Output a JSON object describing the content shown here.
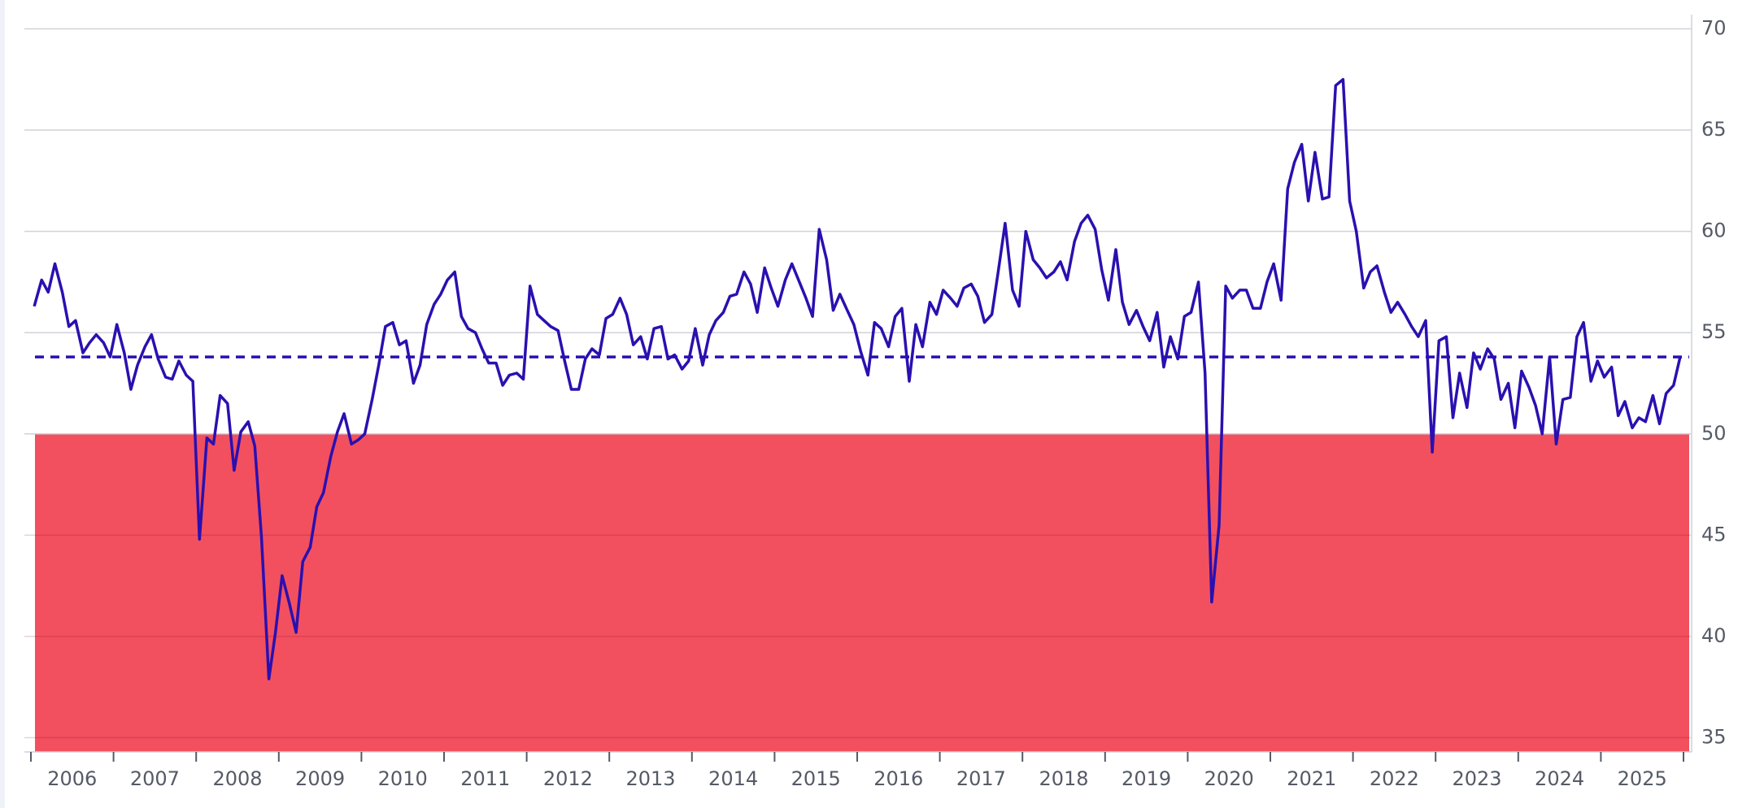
{
  "chart_data": {
    "type": "line",
    "x": [
      2006.04,
      2006.13,
      2006.21,
      2006.29,
      2006.38,
      2006.46,
      2006.54,
      2006.63,
      2006.71,
      2006.79,
      2006.88,
      2006.96,
      2007.04,
      2007.13,
      2007.21,
      2007.29,
      2007.38,
      2007.46,
      2007.54,
      2007.63,
      2007.71,
      2007.79,
      2007.88,
      2007.96,
      2008.04,
      2008.13,
      2008.21,
      2008.29,
      2008.38,
      2008.46,
      2008.54,
      2008.63,
      2008.71,
      2008.79,
      2008.88,
      2008.96,
      2009.04,
      2009.13,
      2009.21,
      2009.29,
      2009.38,
      2009.46,
      2009.54,
      2009.63,
      2009.71,
      2009.79,
      2009.88,
      2009.96,
      2010.04,
      2010.13,
      2010.21,
      2010.29,
      2010.38,
      2010.46,
      2010.54,
      2010.63,
      2010.71,
      2010.79,
      2010.88,
      2010.96,
      2011.04,
      2011.13,
      2011.21,
      2011.29,
      2011.38,
      2011.46,
      2011.54,
      2011.63,
      2011.71,
      2011.79,
      2011.88,
      2011.96,
      2012.04,
      2012.13,
      2012.21,
      2012.29,
      2012.38,
      2012.46,
      2012.54,
      2012.63,
      2012.71,
      2012.79,
      2012.88,
      2012.96,
      2013.04,
      2013.13,
      2013.21,
      2013.29,
      2013.38,
      2013.46,
      2013.54,
      2013.63,
      2013.71,
      2013.79,
      2013.88,
      2013.96,
      2014.04,
      2014.13,
      2014.21,
      2014.29,
      2014.38,
      2014.46,
      2014.54,
      2014.63,
      2014.71,
      2014.79,
      2014.88,
      2014.96,
      2015.04,
      2015.13,
      2015.21,
      2015.29,
      2015.38,
      2015.46,
      2015.54,
      2015.63,
      2015.71,
      2015.79,
      2015.88,
      2015.96,
      2016.04,
      2016.13,
      2016.21,
      2016.29,
      2016.38,
      2016.46,
      2016.54,
      2016.63,
      2016.71,
      2016.79,
      2016.88,
      2016.96,
      2017.04,
      2017.13,
      2017.21,
      2017.29,
      2017.38,
      2017.46,
      2017.54,
      2017.63,
      2017.71,
      2017.79,
      2017.88,
      2017.96,
      2018.04,
      2018.13,
      2018.21,
      2018.29,
      2018.38,
      2018.46,
      2018.54,
      2018.63,
      2018.71,
      2018.79,
      2018.88,
      2018.96,
      2019.04,
      2019.13,
      2019.21,
      2019.29,
      2019.38,
      2019.46,
      2019.54,
      2019.63,
      2019.71,
      2019.79,
      2019.88,
      2019.96,
      2020.04,
      2020.13,
      2020.21,
      2020.29,
      2020.38,
      2020.46,
      2020.54,
      2020.63,
      2020.71,
      2020.79,
      2020.88,
      2020.96,
      2021.04,
      2021.13,
      2021.21,
      2021.29,
      2021.38,
      2021.46,
      2021.54,
      2021.63,
      2021.71,
      2021.79,
      2021.88,
      2021.96,
      2022.04,
      2022.13,
      2022.21,
      2022.29,
      2022.38,
      2022.46,
      2022.54,
      2022.63,
      2022.71,
      2022.79,
      2022.88,
      2022.96,
      2023.04,
      2023.13,
      2023.21,
      2023.29,
      2023.38,
      2023.46,
      2023.54,
      2023.63,
      2023.71,
      2023.79,
      2023.88,
      2023.96,
      2024.04,
      2024.13,
      2024.21,
      2024.29,
      2024.38,
      2024.46,
      2024.54,
      2024.63,
      2024.71,
      2024.79,
      2024.88,
      2024.96,
      2025.04,
      2025.13,
      2025.21,
      2025.29,
      2025.38,
      2025.46,
      2025.54,
      2025.63,
      2025.71,
      2025.79,
      2025.88,
      2025.96
    ],
    "series": [
      {
        "color": "#2a10b0",
        "values": [
          56.3,
          57.6,
          57.0,
          58.4,
          57.0,
          55.3,
          55.6,
          54.0,
          54.5,
          54.9,
          54.5,
          53.8,
          55.4,
          54.0,
          52.2,
          53.4,
          54.3,
          54.9,
          53.7,
          52.8,
          52.7,
          53.6,
          52.9,
          52.6,
          44.8,
          49.8,
          49.5,
          51.9,
          51.5,
          48.2,
          50.1,
          50.6,
          49.4,
          44.9,
          37.9,
          40.2,
          43.0,
          41.6,
          40.2,
          43.7,
          44.4,
          46.4,
          47.1,
          48.9,
          50.1,
          51.0,
          49.5,
          49.7,
          50.0,
          51.7,
          53.4,
          55.3,
          55.5,
          54.4,
          54.6,
          52.5,
          53.4,
          55.4,
          56.4,
          56.9,
          57.6,
          58.0,
          55.8,
          55.2,
          55.0,
          54.2,
          53.5,
          53.5,
          52.4,
          52.9,
          53.0,
          52.7,
          57.3,
          55.9,
          55.6,
          55.3,
          55.1,
          53.6,
          52.2,
          52.2,
          53.7,
          54.2,
          53.9,
          55.7,
          55.9,
          56.7,
          55.9,
          54.4,
          54.8,
          53.7,
          55.2,
          55.3,
          53.7,
          53.9,
          53.2,
          53.6,
          55.2,
          53.4,
          54.9,
          55.6,
          56.0,
          56.8,
          56.9,
          58.0,
          57.4,
          56.0,
          58.2,
          57.2,
          56.3,
          57.6,
          58.4,
          57.6,
          56.7,
          55.8,
          60.1,
          58.6,
          56.1,
          56.9,
          56.1,
          55.4,
          54.1,
          52.9,
          55.5,
          55.2,
          54.3,
          55.8,
          56.2,
          52.6,
          55.4,
          54.3,
          56.5,
          55.9,
          57.1,
          56.7,
          56.3,
          57.2,
          57.4,
          56.8,
          55.5,
          55.9,
          58.1,
          60.4,
          57.1,
          56.3,
          60.0,
          58.6,
          58.2,
          57.7,
          58.0,
          58.5,
          57.6,
          59.5,
          60.4,
          60.8,
          60.1,
          58.1,
          56.6,
          59.1,
          56.5,
          55.4,
          56.1,
          55.3,
          54.6,
          56.0,
          53.3,
          54.8,
          53.7,
          55.8,
          56.0,
          57.5,
          53.0,
          41.7,
          45.5,
          57.3,
          56.7,
          57.1,
          57.1,
          56.2,
          56.2,
          57.5,
          58.4,
          56.6,
          62.1,
          63.4,
          64.3,
          61.5,
          63.9,
          61.6,
          61.7,
          67.2,
          67.5,
          61.5,
          60.0,
          57.2,
          58.0,
          58.3,
          57.0,
          56.0,
          56.5,
          55.9,
          55.3,
          54.8,
          55.6,
          49.1,
          54.6,
          54.8,
          50.8,
          53.0,
          51.3,
          54.0,
          53.2,
          54.2,
          53.7,
          51.7,
          52.5,
          50.3,
          53.1,
          52.3,
          51.4,
          50.0,
          53.8,
          49.5,
          51.7,
          51.8,
          54.8,
          55.5,
          52.6,
          53.6,
          52.8,
          53.3,
          50.9,
          51.6,
          50.3,
          50.8,
          50.6,
          51.9,
          50.5,
          52.0,
          52.4,
          53.8
        ]
      }
    ],
    "xlim": [
      2006,
      2026
    ],
    "xticks": [
      2006,
      2007,
      2008,
      2009,
      2010,
      2011,
      2012,
      2013,
      2014,
      2015,
      2016,
      2017,
      2018,
      2019,
      2020,
      2021,
      2022,
      2023,
      2024,
      2025,
      2026
    ],
    "year_labels": [
      "2006",
      "2007",
      "2008",
      "2009",
      "2010",
      "2011",
      "2012",
      "2013",
      "2014",
      "2015",
      "2016",
      "2017",
      "2018",
      "2019",
      "2020",
      "2021",
      "2022",
      "2023",
      "2024",
      "2025"
    ],
    "ylim": [
      34.3,
      70.7
    ],
    "yticks": [
      35,
      40,
      45,
      50,
      55,
      60,
      65,
      70
    ],
    "grid": true,
    "y_axis_side": "right",
    "shade_below": 50,
    "shade_color": "#f2505f",
    "reference_value": 53.8
  }
}
